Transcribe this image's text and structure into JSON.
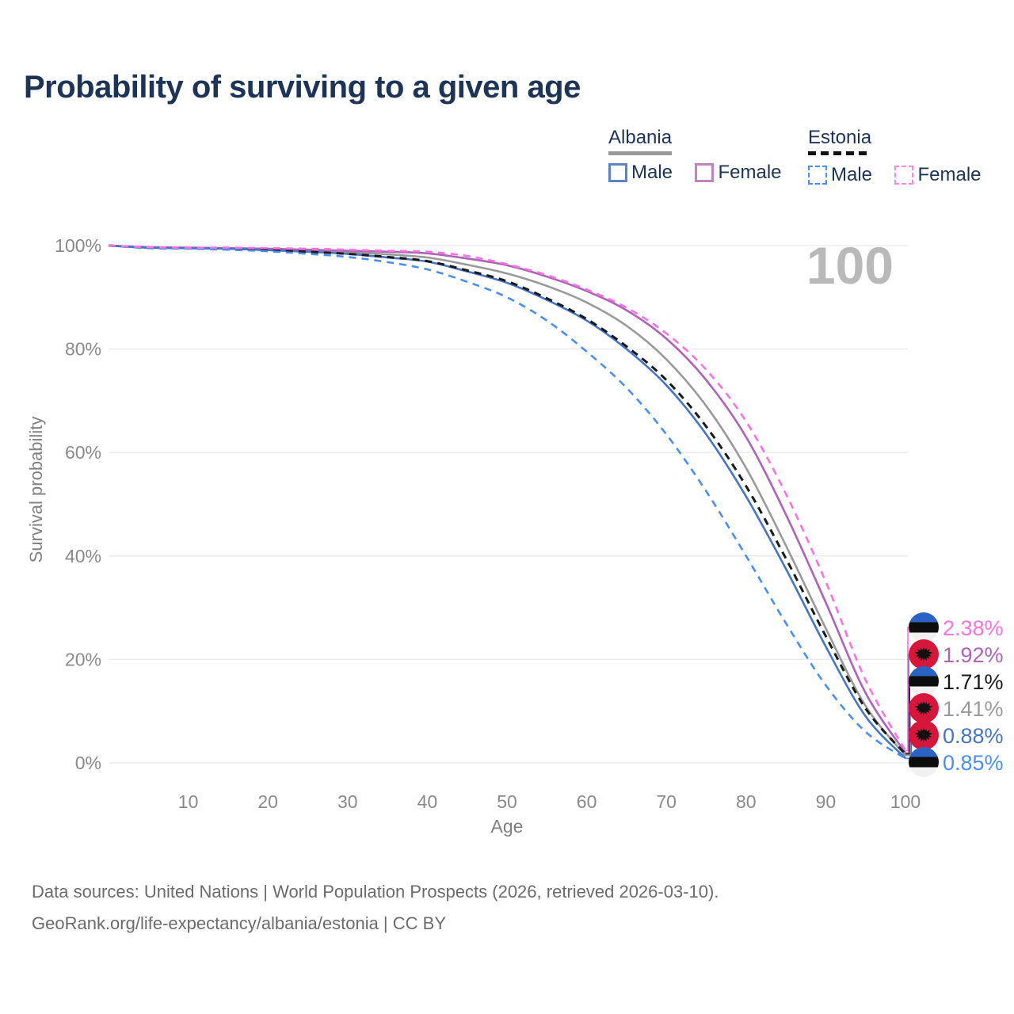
{
  "header": {
    "title": "Probability of surviving to a given age"
  },
  "watermark_age": "100",
  "legend": {
    "groups": [
      {
        "country": "Albania",
        "line_style": "solid",
        "underline_color": "#9a9a9a",
        "items": [
          {
            "label": "Male",
            "color": "#5b84c4",
            "dashed": false
          },
          {
            "label": "Female",
            "color": "#c083bd",
            "dashed": false
          }
        ]
      },
      {
        "country": "Estonia",
        "line_style": "dashed",
        "underline_color": "#111111",
        "items": [
          {
            "label": "Male",
            "color": "#4a90f4",
            "dashed": true
          },
          {
            "label": "Female",
            "color": "#ff85e8",
            "dashed": true
          }
        ]
      }
    ]
  },
  "chart_data": {
    "type": "line",
    "title": "Probability of surviving to a given age",
    "xlabel": "Age",
    "ylabel": "Survival probability",
    "xlim": [
      0,
      100
    ],
    "ylim": [
      0,
      100
    ],
    "grid": "horizontal",
    "legend_position": "top-right",
    "hovered_x": 100,
    "x_ticks": [
      {
        "value": 10,
        "label": "10"
      },
      {
        "value": 20,
        "label": "20"
      },
      {
        "value": 30,
        "label": "30"
      },
      {
        "value": 40,
        "label": "40"
      },
      {
        "value": 50,
        "label": "50"
      },
      {
        "value": 60,
        "label": "60"
      },
      {
        "value": 70,
        "label": "70"
      },
      {
        "value": 80,
        "label": "80"
      },
      {
        "value": 90,
        "label": "90"
      },
      {
        "value": 100,
        "label": "100"
      }
    ],
    "y_ticks": [
      {
        "value": 0,
        "label": "0%"
      },
      {
        "value": 20,
        "label": "20%"
      },
      {
        "value": 40,
        "label": "40%"
      },
      {
        "value": 60,
        "label": "60%"
      },
      {
        "value": 80,
        "label": "80%"
      },
      {
        "value": 100,
        "label": "100%"
      }
    ],
    "ages": [
      0,
      5,
      10,
      15,
      20,
      25,
      30,
      35,
      40,
      45,
      50,
      55,
      60,
      65,
      70,
      75,
      80,
      85,
      90,
      95,
      100
    ],
    "series": [
      {
        "id": "albania-all",
        "name": "Albania",
        "country": "Albania",
        "sex": "all",
        "color": "#9a9a9a",
        "dashed": false,
        "end_label": "1.41%",
        "values": [
          100,
          99.6,
          99.5,
          99.4,
          99.2,
          99.0,
          98.7,
          98.3,
          97.7,
          96.3,
          94.6,
          92.2,
          89.0,
          84.5,
          78.0,
          69.0,
          57.0,
          42.0,
          26.0,
          11.0,
          1.41
        ]
      },
      {
        "id": "albania-female",
        "name": "Albania Female",
        "country": "Albania",
        "sex": "female",
        "color": "#ac63b8",
        "dashed": false,
        "end_label": "1.92%",
        "values": [
          100,
          99.7,
          99.6,
          99.5,
          99.4,
          99.2,
          99.0,
          98.8,
          98.5,
          97.5,
          96.2,
          94.0,
          91.2,
          87.5,
          82.0,
          74.0,
          63.0,
          48.0,
          31.0,
          13.5,
          1.92
        ]
      },
      {
        "id": "albania-male",
        "name": "Albania Male",
        "country": "Albania",
        "sex": "male",
        "color": "#4575c4",
        "dashed": false,
        "end_label": "0.88%",
        "values": [
          100,
          99.6,
          99.5,
          99.4,
          99.1,
          98.8,
          98.4,
          97.7,
          96.9,
          95.0,
          92.8,
          89.5,
          85.5,
          80.0,
          73.0,
          63.5,
          51.5,
          37.5,
          22.5,
          9.0,
          0.88
        ]
      },
      {
        "id": "estonia-all",
        "name": "Estonia",
        "country": "Estonia",
        "sex": "all",
        "color": "#1a1a1a",
        "dashed": true,
        "end_label": "1.71%",
        "values": [
          100,
          99.6,
          99.5,
          99.4,
          99.1,
          98.8,
          98.4,
          97.8,
          97.0,
          95.2,
          93.1,
          89.8,
          85.8,
          80.5,
          74.0,
          65.0,
          53.5,
          39.5,
          24.5,
          10.5,
          1.71
        ]
      },
      {
        "id": "estonia-male",
        "name": "Estonia Male",
        "country": "Estonia",
        "sex": "male",
        "color": "#4a8ff0",
        "dashed": true,
        "end_label": "0.85%",
        "values": [
          100,
          99.5,
          99.4,
          99.2,
          98.9,
          98.4,
          97.8,
          96.8,
          95.4,
          93.0,
          90.0,
          85.5,
          79.5,
          72.5,
          63.5,
          52.5,
          40.0,
          27.0,
          15.0,
          6.0,
          0.85
        ]
      },
      {
        "id": "estonia-female",
        "name": "Estonia Female",
        "country": "Estonia",
        "sex": "female",
        "color": "#ff70e0",
        "dashed": true,
        "end_label": "2.38%",
        "values": [
          100,
          99.7,
          99.6,
          99.6,
          99.5,
          99.4,
          99.2,
          99.0,
          98.8,
          98.0,
          96.4,
          94.3,
          91.5,
          88.0,
          83.0,
          76.0,
          66.0,
          52.0,
          35.0,
          16.0,
          2.38
        ]
      }
    ]
  },
  "footer": {
    "line1": "Data sources: United Nations | World Population Prospects (2026, retrieved 2026-03-10).",
    "line2": "GeoRank.org/life-expectancy/albania/estonia | CC BY"
  }
}
